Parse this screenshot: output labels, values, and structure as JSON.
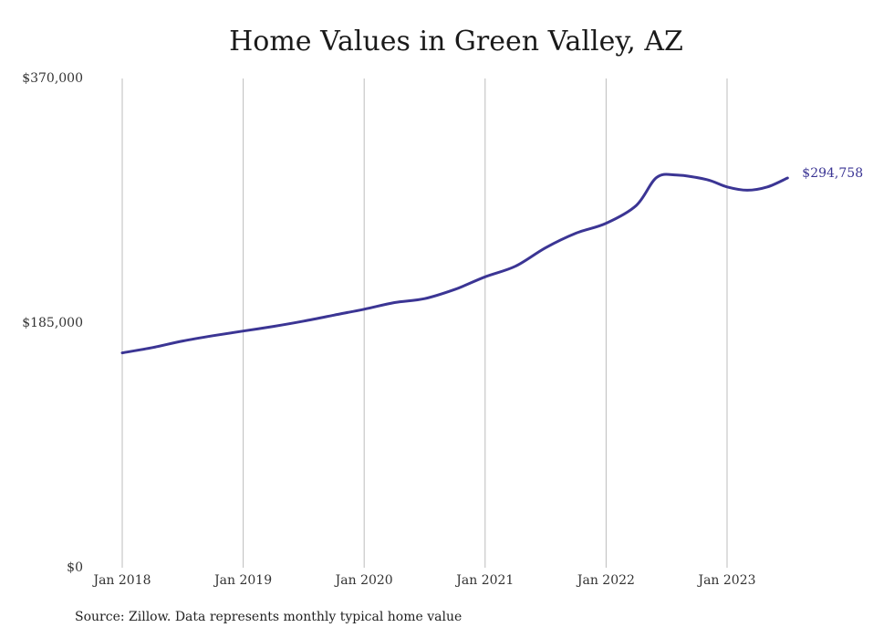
{
  "title": "Home Values in Green Valley, AZ",
  "source_note": "Source: Zillow. Data represents monthly typical home value",
  "colors": {
    "line": "#3b3594",
    "grid": "#bdbdbd",
    "text": "#333333"
  },
  "chart_data": {
    "type": "line",
    "title": "Home Values in Green Valley, AZ",
    "xlabel": "",
    "ylabel": "",
    "ylim": [
      0,
      370000
    ],
    "y_ticks": [
      {
        "value": 0,
        "label": "$0"
      },
      {
        "value": 185000,
        "label": "$185,000"
      },
      {
        "value": 370000,
        "label": "$370,000"
      }
    ],
    "x_ticks": [
      {
        "date": "2018-01",
        "label": "Jan 2018"
      },
      {
        "date": "2019-01",
        "label": "Jan 2019"
      },
      {
        "date": "2020-01",
        "label": "Jan 2020"
      },
      {
        "date": "2021-01",
        "label": "Jan 2021"
      },
      {
        "date": "2022-01",
        "label": "Jan 2022"
      },
      {
        "date": "2023-01",
        "label": "Jan 2023"
      }
    ],
    "x_grid": true,
    "y_grid": false,
    "end_label": "$294,758",
    "series": [
      {
        "points": [
          {
            "x": "2018-01",
            "y": 162500
          },
          {
            "x": "2018-04",
            "y": 166500
          },
          {
            "x": "2018-07",
            "y": 171500
          },
          {
            "x": "2018-10",
            "y": 175500
          },
          {
            "x": "2019-01",
            "y": 179000
          },
          {
            "x": "2019-04",
            "y": 182500
          },
          {
            "x": "2019-07",
            "y": 186500
          },
          {
            "x": "2019-10",
            "y": 191000
          },
          {
            "x": "2020-01",
            "y": 195500
          },
          {
            "x": "2020-04",
            "y": 200500
          },
          {
            "x": "2020-07",
            "y": 203500
          },
          {
            "x": "2020-10",
            "y": 210500
          },
          {
            "x": "2021-01",
            "y": 220000
          },
          {
            "x": "2021-04",
            "y": 228000
          },
          {
            "x": "2021-07",
            "y": 242000
          },
          {
            "x": "2021-10",
            "y": 253000
          },
          {
            "x": "2022-01",
            "y": 260500
          },
          {
            "x": "2022-04",
            "y": 274000
          },
          {
            "x": "2022-06",
            "y": 295000
          },
          {
            "x": "2022-08",
            "y": 297000
          },
          {
            "x": "2022-11",
            "y": 293500
          },
          {
            "x": "2023-01",
            "y": 288000
          },
          {
            "x": "2023-03",
            "y": 285500
          },
          {
            "x": "2023-05",
            "y": 288000
          },
          {
            "x": "2023-07",
            "y": 294758
          }
        ]
      }
    ]
  }
}
